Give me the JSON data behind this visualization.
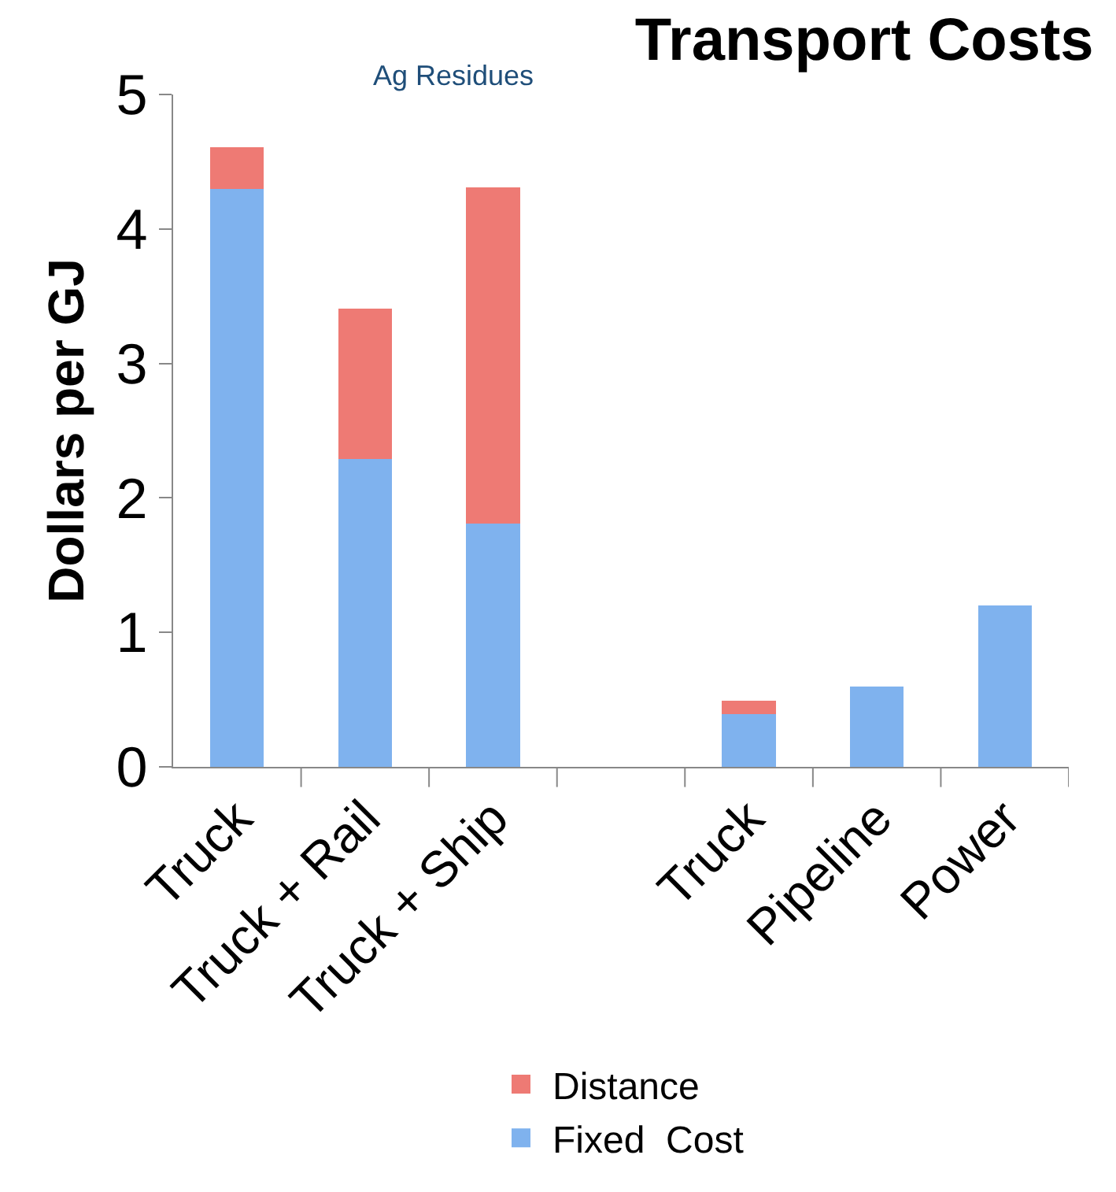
{
  "chart_data": {
    "type": "bar",
    "title": "Transport Costs",
    "ylabel": "Dollars per GJ",
    "annotations": [
      "Ag Residues"
    ],
    "categories": [
      "Truck",
      "Truck + Rail",
      "Truck + Ship",
      null,
      "Truck",
      "Pipeline",
      "Power"
    ],
    "series": [
      {
        "name": "Fixed  Cost",
        "color": "#7fb2ee",
        "values": [
          4.3,
          2.29,
          1.81,
          null,
          0.39,
          0.6,
          1.2
        ]
      },
      {
        "name": "Distance",
        "color": "#ee7a74",
        "values": [
          0.31,
          1.12,
          2.5,
          null,
          0.1,
          null,
          null
        ]
      }
    ],
    "stacked": true,
    "ylim": [
      0,
      5
    ],
    "yticks": [
      0,
      1,
      2,
      3,
      4,
      5
    ],
    "grid": false,
    "legend": "bottom"
  }
}
